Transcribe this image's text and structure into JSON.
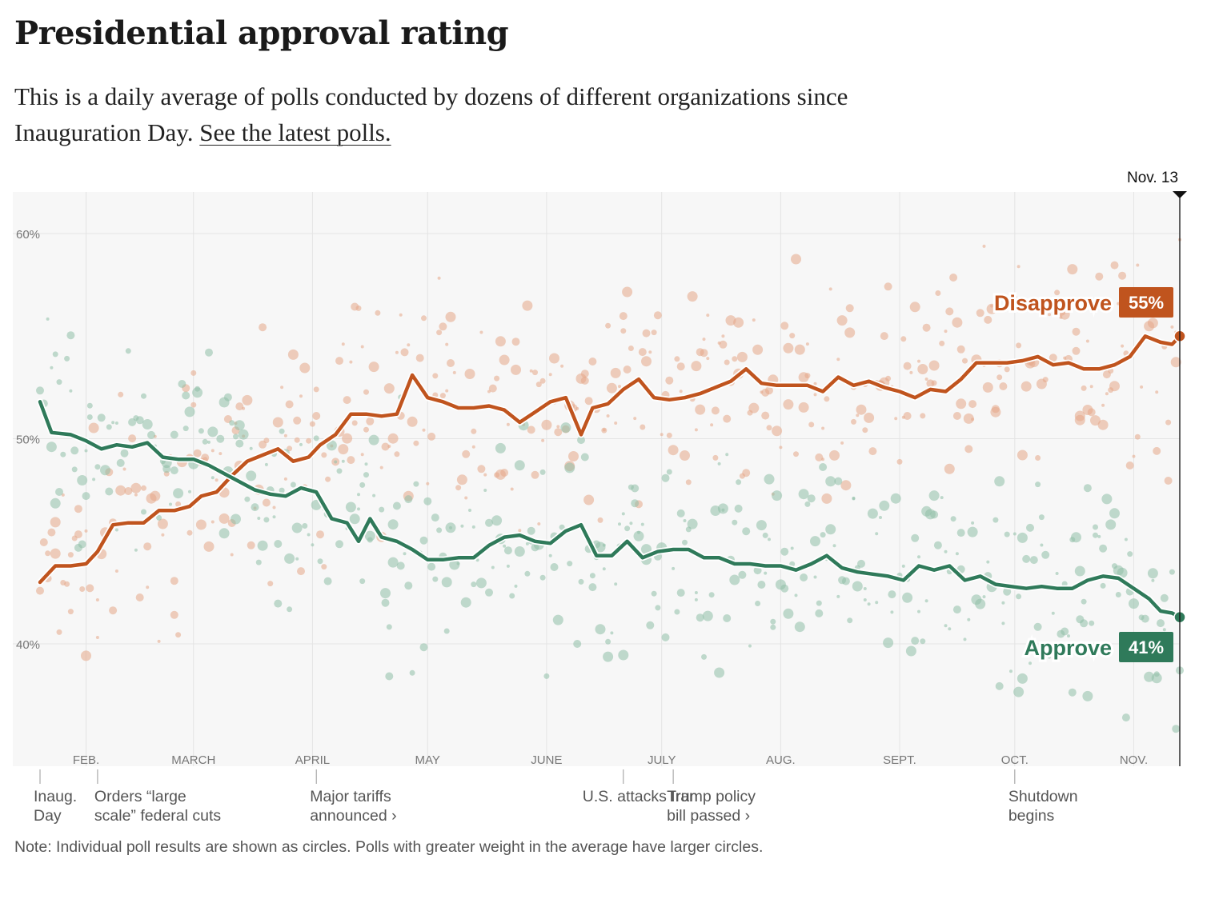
{
  "header": {
    "title": "Presidential approval rating",
    "subtitle_text": "This is a daily average of polls conducted by dozens of different organizations since Inauguration Day.",
    "subtitle_link": "See the latest polls."
  },
  "note": "Note: Individual poll results are shown as circles. Polls with greater weight in the average have larger circles.",
  "colors": {
    "approve": "#2f7a5a",
    "disapprove": "#c0541e",
    "approve_dots": "#8fc0a8",
    "disapprove_dots": "#e6a888",
    "plot_bg": "#f7f7f7",
    "grid": "#e4e4e4"
  },
  "chart_data": {
    "type": "line",
    "title": "Presidential approval rating",
    "y_ticks": [
      "60%",
      "50%",
      "40%"
    ],
    "ylim": [
      34,
      62
    ],
    "date_range": [
      "2025-01-20",
      "2025-11-13"
    ],
    "x_tick_labels": [
      {
        "date": "2025-02-01",
        "label": "FEB."
      },
      {
        "date": "2025-03-01",
        "label": "MARCH"
      },
      {
        "date": "2025-04-01",
        "label": "APRIL"
      },
      {
        "date": "2025-05-01",
        "label": "MAY"
      },
      {
        "date": "2025-06-01",
        "label": "JUNE"
      },
      {
        "date": "2025-07-01",
        "label": "JULY"
      },
      {
        "date": "2025-08-01",
        "label": "AUG."
      },
      {
        "date": "2025-09-01",
        "label": "SEPT."
      },
      {
        "date": "2025-10-01",
        "label": "OCT."
      },
      {
        "date": "2025-11-01",
        "label": "NOV."
      }
    ],
    "current_date_label": "Nov. 13",
    "grid": true,
    "series": [
      {
        "name": "Disapprove",
        "end_label": "55%",
        "points": [
          [
            "2025-01-20",
            43.0
          ],
          [
            "2025-01-24",
            43.8
          ],
          [
            "2025-01-28",
            43.8
          ],
          [
            "2025-02-01",
            43.9
          ],
          [
            "2025-02-04",
            44.5
          ],
          [
            "2025-02-08",
            45.8
          ],
          [
            "2025-02-12",
            45.9
          ],
          [
            "2025-02-16",
            45.9
          ],
          [
            "2025-02-20",
            46.5
          ],
          [
            "2025-02-24",
            46.5
          ],
          [
            "2025-02-28",
            46.7
          ],
          [
            "2025-03-03",
            47.2
          ],
          [
            "2025-03-07",
            47.4
          ],
          [
            "2025-03-11",
            48.2
          ],
          [
            "2025-03-15",
            48.9
          ],
          [
            "2025-03-19",
            49.2
          ],
          [
            "2025-03-23",
            49.5
          ],
          [
            "2025-03-27",
            48.9
          ],
          [
            "2025-03-31",
            49.1
          ],
          [
            "2025-04-03",
            49.7
          ],
          [
            "2025-04-07",
            50.2
          ],
          [
            "2025-04-11",
            51.2
          ],
          [
            "2025-04-15",
            51.2
          ],
          [
            "2025-04-19",
            51.1
          ],
          [
            "2025-04-23",
            51.2
          ],
          [
            "2025-04-27",
            53.1
          ],
          [
            "2025-05-01",
            52.0
          ],
          [
            "2025-05-05",
            51.8
          ],
          [
            "2025-05-09",
            51.5
          ],
          [
            "2025-05-13",
            51.5
          ],
          [
            "2025-05-17",
            51.6
          ],
          [
            "2025-05-21",
            51.4
          ],
          [
            "2025-05-25",
            50.8
          ],
          [
            "2025-05-29",
            51.3
          ],
          [
            "2025-06-02",
            51.8
          ],
          [
            "2025-06-06",
            52.0
          ],
          [
            "2025-06-10",
            50.2
          ],
          [
            "2025-06-13",
            51.5
          ],
          [
            "2025-06-17",
            51.7
          ],
          [
            "2025-06-21",
            52.4
          ],
          [
            "2025-06-25",
            52.9
          ],
          [
            "2025-06-29",
            52.0
          ],
          [
            "2025-07-03",
            51.9
          ],
          [
            "2025-07-07",
            52.0
          ],
          [
            "2025-07-11",
            52.2
          ],
          [
            "2025-07-15",
            52.5
          ],
          [
            "2025-07-19",
            52.8
          ],
          [
            "2025-07-23",
            53.4
          ],
          [
            "2025-07-27",
            52.7
          ],
          [
            "2025-07-31",
            52.6
          ],
          [
            "2025-08-04",
            52.6
          ],
          [
            "2025-08-08",
            52.6
          ],
          [
            "2025-08-12",
            52.3
          ],
          [
            "2025-08-16",
            53.0
          ],
          [
            "2025-08-20",
            52.6
          ],
          [
            "2025-08-24",
            52.8
          ],
          [
            "2025-08-28",
            52.5
          ],
          [
            "2025-09-01",
            52.3
          ],
          [
            "2025-09-05",
            52.0
          ],
          [
            "2025-09-09",
            52.4
          ],
          [
            "2025-09-13",
            52.3
          ],
          [
            "2025-09-17",
            52.9
          ],
          [
            "2025-09-21",
            53.7
          ],
          [
            "2025-09-25",
            53.7
          ],
          [
            "2025-09-29",
            53.7
          ],
          [
            "2025-10-03",
            53.8
          ],
          [
            "2025-10-07",
            54.0
          ],
          [
            "2025-10-11",
            53.6
          ],
          [
            "2025-10-15",
            53.7
          ],
          [
            "2025-10-19",
            53.4
          ],
          [
            "2025-10-23",
            53.4
          ],
          [
            "2025-10-27",
            53.6
          ],
          [
            "2025-10-31",
            54.0
          ],
          [
            "2025-11-04",
            55.0
          ],
          [
            "2025-11-08",
            54.7
          ],
          [
            "2025-11-11",
            54.6
          ],
          [
            "2025-11-13",
            55.0
          ]
        ]
      },
      {
        "name": "Approve",
        "end_label": "41%",
        "points": [
          [
            "2025-01-20",
            51.8
          ],
          [
            "2025-01-23",
            50.3
          ],
          [
            "2025-01-28",
            50.2
          ],
          [
            "2025-02-01",
            49.9
          ],
          [
            "2025-02-05",
            49.5
          ],
          [
            "2025-02-09",
            49.7
          ],
          [
            "2025-02-13",
            49.6
          ],
          [
            "2025-02-17",
            49.8
          ],
          [
            "2025-02-21",
            49.1
          ],
          [
            "2025-02-25",
            49.0
          ],
          [
            "2025-03-01",
            49.0
          ],
          [
            "2025-03-05",
            48.7
          ],
          [
            "2025-03-09",
            48.3
          ],
          [
            "2025-03-13",
            47.9
          ],
          [
            "2025-03-17",
            47.5
          ],
          [
            "2025-03-21",
            47.3
          ],
          [
            "2025-03-25",
            47.2
          ],
          [
            "2025-03-29",
            47.6
          ],
          [
            "2025-04-02",
            47.4
          ],
          [
            "2025-04-06",
            46.1
          ],
          [
            "2025-04-10",
            45.9
          ],
          [
            "2025-04-13",
            45.0
          ],
          [
            "2025-04-16",
            46.1
          ],
          [
            "2025-04-19",
            45.2
          ],
          [
            "2025-04-23",
            45.0
          ],
          [
            "2025-04-27",
            44.6
          ],
          [
            "2025-05-01",
            44.1
          ],
          [
            "2025-05-05",
            44.1
          ],
          [
            "2025-05-09",
            44.2
          ],
          [
            "2025-05-13",
            44.2
          ],
          [
            "2025-05-17",
            44.8
          ],
          [
            "2025-05-21",
            45.2
          ],
          [
            "2025-05-25",
            45.3
          ],
          [
            "2025-05-29",
            45.0
          ],
          [
            "2025-06-02",
            44.9
          ],
          [
            "2025-06-06",
            45.5
          ],
          [
            "2025-06-10",
            45.8
          ],
          [
            "2025-06-14",
            44.3
          ],
          [
            "2025-06-18",
            44.3
          ],
          [
            "2025-06-22",
            45.0
          ],
          [
            "2025-06-26",
            44.2
          ],
          [
            "2025-06-30",
            44.5
          ],
          [
            "2025-07-04",
            44.6
          ],
          [
            "2025-07-08",
            44.6
          ],
          [
            "2025-07-12",
            44.2
          ],
          [
            "2025-07-16",
            44.2
          ],
          [
            "2025-07-20",
            43.9
          ],
          [
            "2025-07-24",
            43.9
          ],
          [
            "2025-07-28",
            43.8
          ],
          [
            "2025-08-01",
            43.8
          ],
          [
            "2025-08-05",
            43.6
          ],
          [
            "2025-08-09",
            43.9
          ],
          [
            "2025-08-13",
            44.3
          ],
          [
            "2025-08-17",
            43.7
          ],
          [
            "2025-08-21",
            43.5
          ],
          [
            "2025-08-25",
            43.4
          ],
          [
            "2025-08-29",
            43.3
          ],
          [
            "2025-09-02",
            43.1
          ],
          [
            "2025-09-06",
            43.8
          ],
          [
            "2025-09-10",
            43.6
          ],
          [
            "2025-09-14",
            43.8
          ],
          [
            "2025-09-18",
            43.1
          ],
          [
            "2025-09-22",
            43.3
          ],
          [
            "2025-09-26",
            42.9
          ],
          [
            "2025-09-30",
            42.8
          ],
          [
            "2025-10-04",
            42.7
          ],
          [
            "2025-10-08",
            42.8
          ],
          [
            "2025-10-12",
            42.7
          ],
          [
            "2025-10-16",
            42.7
          ],
          [
            "2025-10-20",
            43.1
          ],
          [
            "2025-10-24",
            43.3
          ],
          [
            "2025-10-28",
            43.2
          ],
          [
            "2025-11-01",
            42.7
          ],
          [
            "2025-11-05",
            42.2
          ],
          [
            "2025-11-08",
            41.6
          ],
          [
            "2025-11-11",
            41.5
          ],
          [
            "2025-11-13",
            41.3
          ]
        ]
      }
    ],
    "annotations": [
      {
        "date": "2025-01-20",
        "lines": [
          "Inaug.",
          "Day"
        ]
      },
      {
        "date": "2025-02-04",
        "lines": [
          "Orders “large",
          "scale” federal cuts"
        ]
      },
      {
        "date": "2025-04-02",
        "lines": [
          "Major tariffs",
          "announced ›"
        ]
      },
      {
        "date": "2025-06-21",
        "lines": [
          "U.S. attacks Iran"
        ]
      },
      {
        "date": "2025-07-04",
        "lines": [
          "Trump policy",
          "bill passed ›"
        ]
      },
      {
        "date": "2025-10-01",
        "lines": [
          "Shutdown",
          "begins"
        ]
      }
    ]
  }
}
